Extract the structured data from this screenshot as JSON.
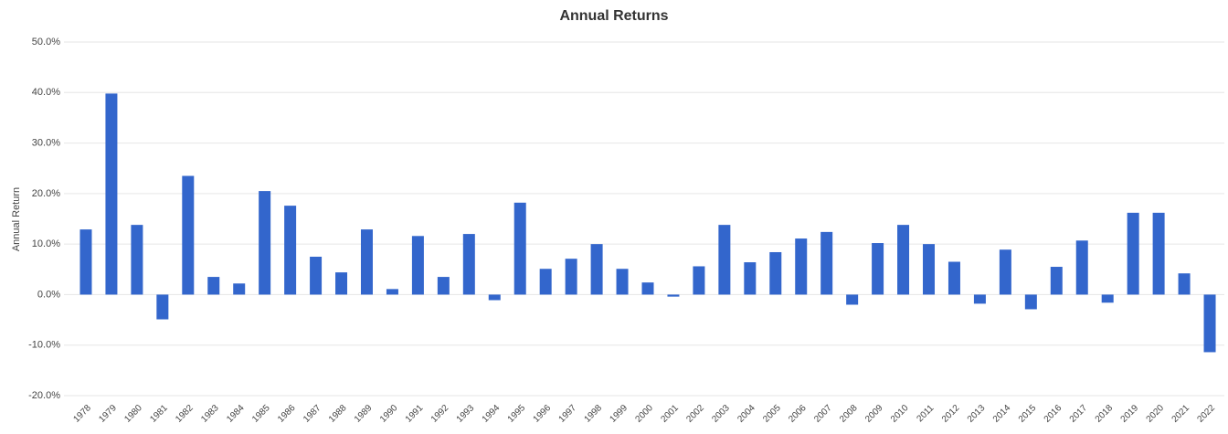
{
  "chart_data": {
    "type": "bar",
    "title": "Annual Returns",
    "y_label": "Annual Return",
    "categories": [
      "1978",
      "1979",
      "1980",
      "1981",
      "1982",
      "1983",
      "1984",
      "1985",
      "1986",
      "1987",
      "1988",
      "1989",
      "1990",
      "1991",
      "1992",
      "1993",
      "1994",
      "1995",
      "1996",
      "1997",
      "1998",
      "1999",
      "2000",
      "2001",
      "2002",
      "2003",
      "2004",
      "2005",
      "2006",
      "2007",
      "2008",
      "2009",
      "2010",
      "2011",
      "2012",
      "2013",
      "2014",
      "2015",
      "2016",
      "2017",
      "2018",
      "2019",
      "2020",
      "2021",
      "2022"
    ],
    "values": [
      12.9,
      39.8,
      13.8,
      -4.9,
      23.5,
      3.5,
      2.2,
      20.5,
      17.6,
      7.5,
      4.4,
      12.9,
      1.1,
      11.6,
      3.5,
      12.0,
      -1.1,
      18.2,
      5.1,
      7.1,
      10.0,
      5.1,
      2.4,
      -0.4,
      5.6,
      13.8,
      6.4,
      8.4,
      11.1,
      12.4,
      -2.0,
      10.2,
      13.8,
      10.0,
      6.5,
      -1.8,
      8.9,
      -2.9,
      5.5,
      10.7,
      -1.6,
      16.2,
      16.2,
      4.2,
      -11.4
    ],
    "color": "#3366cc",
    "ylim": [
      -20,
      50
    ],
    "yticks": [
      {
        "value": -20,
        "label": "-20.0%"
      },
      {
        "value": -10,
        "label": "-10.0%"
      },
      {
        "value": 0,
        "label": "0.0%"
      },
      {
        "value": 10,
        "label": "10.0%"
      },
      {
        "value": 20,
        "label": "20.0%"
      },
      {
        "value": 30,
        "label": "30.0%"
      },
      {
        "value": 40,
        "label": "40.0%"
      },
      {
        "value": 50,
        "label": "50.0%"
      }
    ],
    "grid": true
  }
}
